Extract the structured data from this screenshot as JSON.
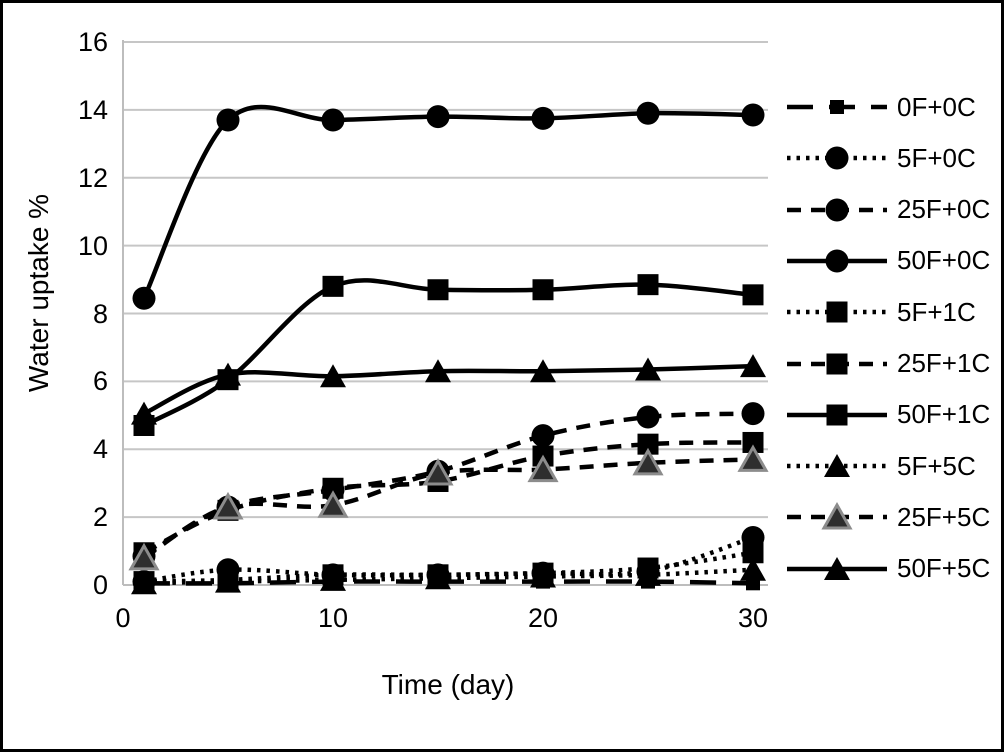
{
  "figure": {
    "background": "#ffffff",
    "border_color": "#000000",
    "gridline_color": "#c6c6c6",
    "axis_line_color": "#bdbdbd",
    "text_color": "#000000",
    "marker_gray": "#8c8c8c"
  },
  "chart_data": {
    "type": "line",
    "title": "",
    "xlabel": "Time (day)",
    "ylabel": "Water uptake %",
    "x": [
      1,
      5,
      10,
      15,
      20,
      25,
      30
    ],
    "xlim": [
      0,
      30
    ],
    "ylim": [
      0,
      16
    ],
    "xticks": [
      0,
      10,
      20,
      30
    ],
    "yticks": [
      0,
      2,
      4,
      6,
      8,
      10,
      12,
      14,
      16
    ],
    "grid": "horizontal",
    "legend_position": "right",
    "line_color": "#000000",
    "series": [
      {
        "name": "0F+0C",
        "line": "long-dash",
        "marker": "square-small",
        "values": [
          0.05,
          0.05,
          0.1,
          0.1,
          0.1,
          0.1,
          0.05
        ]
      },
      {
        "name": "5F+0C",
        "line": "dotted",
        "marker": "circle",
        "values": [
          0.1,
          0.45,
          0.3,
          0.3,
          0.35,
          0.4,
          1.4
        ]
      },
      {
        "name": "25F+0C",
        "line": "dashed",
        "marker": "circle",
        "values": [
          0.85,
          2.3,
          2.8,
          3.35,
          4.4,
          4.95,
          5.05
        ]
      },
      {
        "name": "50F+0C",
        "line": "solid",
        "marker": "circle",
        "values": [
          8.45,
          13.7,
          13.7,
          13.8,
          13.75,
          13.9,
          13.85
        ]
      },
      {
        "name": "5F+1C",
        "line": "dotted",
        "marker": "square",
        "values": [
          0.1,
          0.15,
          0.3,
          0.3,
          0.35,
          0.5,
          0.95
        ]
      },
      {
        "name": "25F+1C",
        "line": "dashed",
        "marker": "square",
        "values": [
          0.95,
          2.2,
          2.85,
          3.05,
          3.8,
          4.15,
          4.2
        ]
      },
      {
        "name": "50F+1C",
        "line": "solid",
        "marker": "square",
        "values": [
          4.7,
          6.05,
          8.8,
          8.7,
          8.7,
          8.85,
          8.55
        ]
      },
      {
        "name": "5F+5C",
        "line": "dotted",
        "marker": "triangle",
        "values": [
          0.05,
          0.1,
          0.15,
          0.2,
          0.25,
          0.3,
          0.45
        ]
      },
      {
        "name": "25F+5C",
        "line": "dashed",
        "marker": "triangle-gray",
        "values": [
          0.8,
          2.3,
          2.35,
          3.3,
          3.4,
          3.6,
          3.7
        ]
      },
      {
        "name": "50F+5C",
        "line": "solid",
        "marker": "triangle",
        "values": [
          5.05,
          6.2,
          6.15,
          6.3,
          6.3,
          6.35,
          6.45
        ]
      }
    ]
  }
}
